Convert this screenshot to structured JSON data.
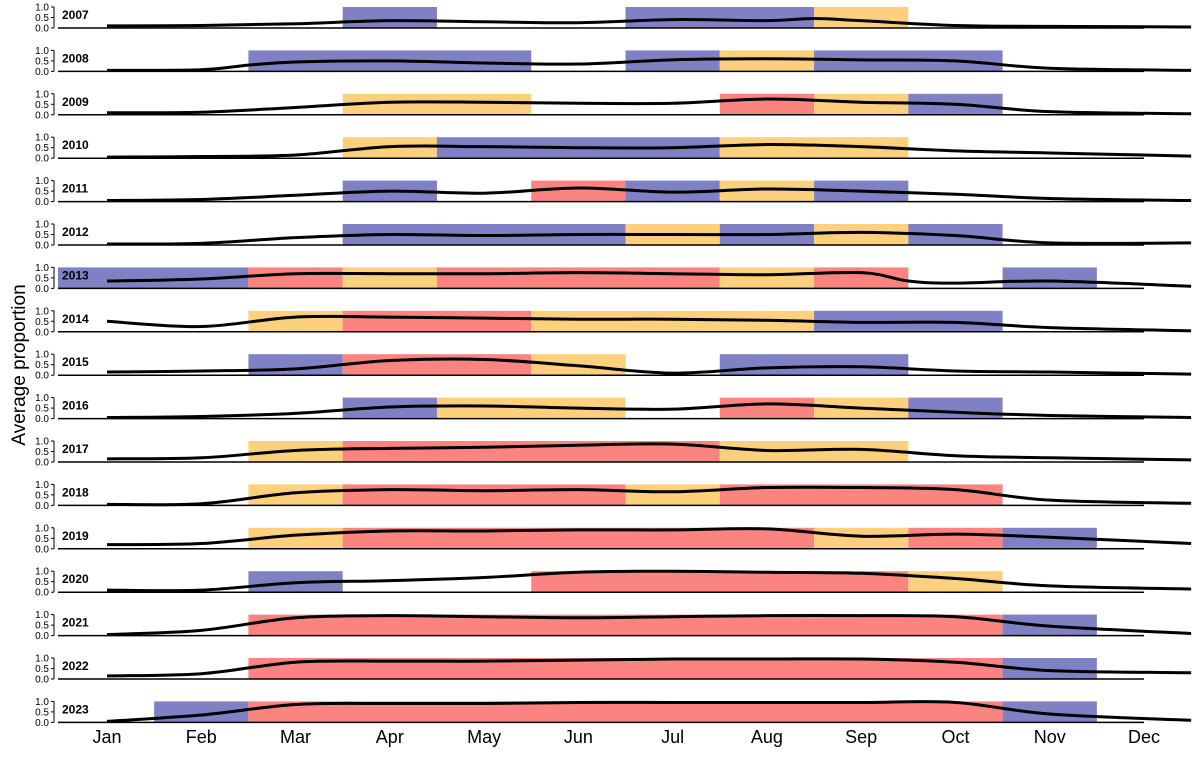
{
  "chart_data": {
    "type": "area",
    "title": "",
    "ylabel": "Average proportion",
    "xlabel": "",
    "x_ticks": [
      "Jan",
      "Feb",
      "Mar",
      "Apr",
      "May",
      "Jun",
      "Jul",
      "Aug",
      "Sep",
      "Oct",
      "Nov",
      "Dec"
    ],
    "y_ticks": [
      "1.0",
      "0.5",
      "0.0"
    ],
    "ylim": [
      0,
      1
    ],
    "xlim": [
      0,
      11.5
    ],
    "grid": false,
    "colors": {
      "blue": "#8080c4",
      "yellow": "#fcd07c",
      "red": "#fb8480",
      "line": "#000000"
    },
    "panels": [
      {
        "year": "2007",
        "x": [
          0,
          1,
          2,
          3,
          4,
          5,
          6,
          7,
          7.5,
          8,
          9,
          10,
          11.5
        ],
        "y": [
          0.1,
          0.12,
          0.2,
          0.35,
          0.3,
          0.25,
          0.4,
          0.35,
          0.45,
          0.35,
          0.12,
          0.08,
          0.05
        ],
        "bands": [
          {
            "start": 2.5,
            "end": 3.5,
            "color": "blue"
          },
          {
            "start": 5.5,
            "end": 7.5,
            "color": "blue"
          },
          {
            "start": 7.5,
            "end": 8.5,
            "color": "yellow"
          }
        ]
      },
      {
        "year": "2008",
        "x": [
          0,
          1,
          1.5,
          2,
          3,
          4,
          5,
          6,
          7,
          8,
          9,
          10,
          11.5
        ],
        "y": [
          0.05,
          0.08,
          0.3,
          0.45,
          0.5,
          0.4,
          0.35,
          0.55,
          0.6,
          0.55,
          0.5,
          0.15,
          0.05
        ],
        "bands": [
          {
            "start": 1.5,
            "end": 4.5,
            "color": "blue"
          },
          {
            "start": 5.5,
            "end": 6.5,
            "color": "blue"
          },
          {
            "start": 6.5,
            "end": 7.5,
            "color": "yellow"
          },
          {
            "start": 7.5,
            "end": 9.5,
            "color": "blue"
          }
        ]
      },
      {
        "year": "2009",
        "x": [
          0,
          1,
          2,
          3,
          4,
          5,
          6,
          7,
          8,
          9,
          10,
          11.5
        ],
        "y": [
          0.1,
          0.12,
          0.35,
          0.6,
          0.6,
          0.55,
          0.55,
          0.75,
          0.6,
          0.5,
          0.15,
          0.05
        ],
        "bands": [
          {
            "start": 2.5,
            "end": 4.5,
            "color": "yellow"
          },
          {
            "start": 6.5,
            "end": 7.5,
            "color": "red"
          },
          {
            "start": 7.5,
            "end": 8.5,
            "color": "yellow"
          },
          {
            "start": 8.5,
            "end": 9.5,
            "color": "blue"
          }
        ]
      },
      {
        "year": "2010",
        "x": [
          0,
          1,
          2,
          3,
          4,
          5,
          6,
          7,
          8,
          9,
          10,
          11.5
        ],
        "y": [
          0.05,
          0.08,
          0.15,
          0.55,
          0.55,
          0.5,
          0.5,
          0.65,
          0.55,
          0.35,
          0.25,
          0.1
        ],
        "bands": [
          {
            "start": 2.5,
            "end": 3.5,
            "color": "yellow"
          },
          {
            "start": 3.5,
            "end": 6.5,
            "color": "blue"
          },
          {
            "start": 6.5,
            "end": 8.5,
            "color": "yellow"
          }
        ]
      },
      {
        "year": "2011",
        "x": [
          0,
          1,
          2,
          3,
          4,
          5,
          6,
          7,
          8,
          9,
          10,
          11.5
        ],
        "y": [
          0.05,
          0.1,
          0.3,
          0.5,
          0.4,
          0.65,
          0.45,
          0.6,
          0.5,
          0.35,
          0.15,
          0.05
        ],
        "bands": [
          {
            "start": 2.5,
            "end": 3.5,
            "color": "blue"
          },
          {
            "start": 4.5,
            "end": 5.5,
            "color": "red"
          },
          {
            "start": 5.5,
            "end": 6.5,
            "color": "blue"
          },
          {
            "start": 6.5,
            "end": 7.5,
            "color": "yellow"
          },
          {
            "start": 7.5,
            "end": 8.5,
            "color": "blue"
          }
        ]
      },
      {
        "year": "2012",
        "x": [
          0,
          1,
          2,
          3,
          4,
          5,
          6,
          7,
          8,
          9,
          10,
          11.5
        ],
        "y": [
          0.05,
          0.08,
          0.35,
          0.5,
          0.45,
          0.5,
          0.5,
          0.5,
          0.6,
          0.45,
          0.1,
          0.1
        ],
        "bands": [
          {
            "start": 2.5,
            "end": 5.5,
            "color": "blue"
          },
          {
            "start": 5.5,
            "end": 6.5,
            "color": "yellow"
          },
          {
            "start": 6.5,
            "end": 7.5,
            "color": "blue"
          },
          {
            "start": 7.5,
            "end": 8.5,
            "color": "yellow"
          },
          {
            "start": 8.5,
            "end": 9.5,
            "color": "blue"
          }
        ]
      },
      {
        "year": "2013",
        "x": [
          0,
          1,
          2,
          3,
          4,
          5,
          6,
          7,
          8,
          8.5,
          9,
          10,
          11.5
        ],
        "y": [
          0.35,
          0.45,
          0.7,
          0.7,
          0.7,
          0.75,
          0.7,
          0.65,
          0.75,
          0.35,
          0.25,
          0.35,
          0.1
        ],
        "bands": [
          {
            "start": 0,
            "end": 1.5,
            "color": "blue"
          },
          {
            "start": 1.5,
            "end": 2.5,
            "color": "red"
          },
          {
            "start": 2.5,
            "end": 3.5,
            "color": "yellow"
          },
          {
            "start": 3.5,
            "end": 6.5,
            "color": "red"
          },
          {
            "start": 6.5,
            "end": 7.5,
            "color": "yellow"
          },
          {
            "start": 7.5,
            "end": 8.5,
            "color": "red"
          },
          {
            "start": 9.5,
            "end": 10.5,
            "color": "blue"
          }
        ]
      },
      {
        "year": "2014",
        "x": [
          0,
          1,
          2,
          3,
          4,
          5,
          6,
          7,
          8,
          9,
          10,
          11.5
        ],
        "y": [
          0.5,
          0.25,
          0.7,
          0.7,
          0.65,
          0.6,
          0.6,
          0.55,
          0.45,
          0.45,
          0.2,
          0.05
        ],
        "bands": [
          {
            "start": 1.5,
            "end": 2.5,
            "color": "yellow"
          },
          {
            "start": 2.5,
            "end": 4.5,
            "color": "red"
          },
          {
            "start": 4.5,
            "end": 7.5,
            "color": "yellow"
          },
          {
            "start": 7.5,
            "end": 9.5,
            "color": "blue"
          }
        ]
      },
      {
        "year": "2015",
        "x": [
          0,
          1,
          2,
          3,
          4,
          5,
          6,
          7,
          8,
          9,
          10,
          11.5
        ],
        "y": [
          0.15,
          0.2,
          0.3,
          0.7,
          0.75,
          0.45,
          0.1,
          0.35,
          0.4,
          0.2,
          0.15,
          0.05
        ],
        "bands": [
          {
            "start": 1.5,
            "end": 2.5,
            "color": "blue"
          },
          {
            "start": 2.5,
            "end": 4.5,
            "color": "red"
          },
          {
            "start": 4.5,
            "end": 5.5,
            "color": "yellow"
          },
          {
            "start": 6.5,
            "end": 8.5,
            "color": "blue"
          }
        ]
      },
      {
        "year": "2016",
        "x": [
          0,
          1,
          2,
          3,
          4,
          5,
          6,
          7,
          8,
          9,
          10,
          11.5
        ],
        "y": [
          0.05,
          0.1,
          0.25,
          0.55,
          0.6,
          0.5,
          0.45,
          0.7,
          0.5,
          0.3,
          0.15,
          0.05
        ],
        "bands": [
          {
            "start": 2.5,
            "end": 3.5,
            "color": "blue"
          },
          {
            "start": 3.5,
            "end": 5.5,
            "color": "yellow"
          },
          {
            "start": 6.5,
            "end": 7.5,
            "color": "red"
          },
          {
            "start": 7.5,
            "end": 8.5,
            "color": "yellow"
          },
          {
            "start": 8.5,
            "end": 9.5,
            "color": "blue"
          }
        ]
      },
      {
        "year": "2017",
        "x": [
          0,
          1,
          2,
          3,
          4,
          5,
          6,
          7,
          8,
          9,
          10,
          11.5
        ],
        "y": [
          0.15,
          0.2,
          0.55,
          0.65,
          0.7,
          0.8,
          0.85,
          0.55,
          0.6,
          0.3,
          0.2,
          0.1
        ],
        "bands": [
          {
            "start": 1.5,
            "end": 2.5,
            "color": "yellow"
          },
          {
            "start": 2.5,
            "end": 6.5,
            "color": "red"
          },
          {
            "start": 6.5,
            "end": 8.5,
            "color": "yellow"
          }
        ]
      },
      {
        "year": "2018",
        "x": [
          0,
          1,
          2,
          3,
          4,
          5,
          6,
          7,
          8,
          9,
          10,
          11.5
        ],
        "y": [
          0.05,
          0.08,
          0.6,
          0.75,
          0.7,
          0.75,
          0.65,
          0.85,
          0.85,
          0.75,
          0.25,
          0.1
        ],
        "bands": [
          {
            "start": 1.5,
            "end": 2.5,
            "color": "yellow"
          },
          {
            "start": 2.5,
            "end": 5.5,
            "color": "red"
          },
          {
            "start": 5.5,
            "end": 6.5,
            "color": "yellow"
          },
          {
            "start": 6.5,
            "end": 9.5,
            "color": "red"
          }
        ]
      },
      {
        "year": "2019",
        "x": [
          0,
          1,
          2,
          3,
          4,
          5,
          6,
          7,
          8,
          9,
          10,
          11.5
        ],
        "y": [
          0.2,
          0.25,
          0.65,
          0.85,
          0.85,
          0.9,
          0.9,
          0.95,
          0.6,
          0.7,
          0.55,
          0.25
        ],
        "bands": [
          {
            "start": 1.5,
            "end": 2.5,
            "color": "yellow"
          },
          {
            "start": 2.5,
            "end": 7.5,
            "color": "red"
          },
          {
            "start": 7.5,
            "end": 8.5,
            "color": "yellow"
          },
          {
            "start": 8.5,
            "end": 9.5,
            "color": "red"
          },
          {
            "start": 9.5,
            "end": 10.5,
            "color": "blue"
          }
        ]
      },
      {
        "year": "2020",
        "x": [
          0,
          1,
          2,
          3,
          4,
          5,
          6,
          7,
          8,
          9,
          10,
          11.5
        ],
        "y": [
          0.1,
          0.1,
          0.45,
          0.55,
          0.7,
          0.95,
          1.0,
          0.95,
          0.9,
          0.65,
          0.3,
          0.15
        ],
        "bands": [
          {
            "start": 1.5,
            "end": 2.5,
            "color": "blue"
          },
          {
            "start": 4.5,
            "end": 8.5,
            "color": "red"
          },
          {
            "start": 8.5,
            "end": 9.5,
            "color": "yellow"
          }
        ]
      },
      {
        "year": "2021",
        "x": [
          0,
          1,
          2,
          3,
          4,
          5,
          6,
          7,
          8,
          9,
          10,
          11.5
        ],
        "y": [
          0.05,
          0.25,
          0.85,
          0.95,
          0.9,
          0.85,
          0.9,
          0.95,
          0.95,
          0.9,
          0.45,
          0.1
        ],
        "bands": [
          {
            "start": 1.5,
            "end": 9.5,
            "color": "red"
          },
          {
            "start": 9.5,
            "end": 10.5,
            "color": "blue"
          }
        ]
      },
      {
        "year": "2022",
        "x": [
          0,
          1,
          2,
          3,
          4,
          5,
          6,
          7,
          8,
          9,
          10,
          11.5
        ],
        "y": [
          0.15,
          0.25,
          0.8,
          0.85,
          0.85,
          0.9,
          0.95,
          0.95,
          0.95,
          0.8,
          0.4,
          0.3
        ],
        "bands": [
          {
            "start": 1.5,
            "end": 9.5,
            "color": "red"
          },
          {
            "start": 9.5,
            "end": 10.5,
            "color": "blue"
          }
        ]
      },
      {
        "year": "2023",
        "x": [
          0,
          1,
          2,
          3,
          4,
          5,
          6,
          7,
          8,
          9,
          10,
          11.5
        ],
        "y": [
          0.05,
          0.35,
          0.85,
          0.9,
          0.9,
          0.95,
          0.95,
          0.95,
          0.95,
          0.95,
          0.4,
          0.1
        ],
        "bands": [
          {
            "start": 0.5,
            "end": 1.5,
            "color": "blue"
          },
          {
            "start": 1.5,
            "end": 9.5,
            "color": "red"
          },
          {
            "start": 9.5,
            "end": 10.5,
            "color": "blue"
          }
        ]
      }
    ]
  }
}
